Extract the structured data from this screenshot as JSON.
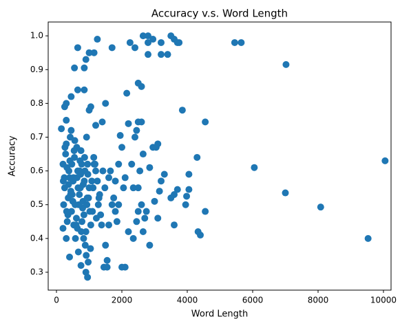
{
  "chart_data": {
    "type": "scatter",
    "title": "Accuracy v.s. Word Length",
    "x_label": "Word Length",
    "y_label": "Accuracy",
    "color": "#1f77b4",
    "xlim": [
      -253,
      10232
    ],
    "ylim": [
      0.247,
      1.041
    ],
    "xticks": [
      0,
      2000,
      4000,
      6000,
      8000,
      10000
    ],
    "yticks": [
      0.3,
      0.4,
      0.5,
      0.6,
      0.7,
      0.8,
      0.9,
      {
        "value": 1,
        "label": "1.0"
      }
    ],
    "x": [
      5450,
      5650,
      7020,
      6050,
      10050,
      7000,
      8080,
      9530,
      4550,
      4400,
      4330,
      4300,
      4550,
      3850,
      4050,
      4050,
      3980,
      3950,
      3700,
      3600,
      3500,
      3300,
      3200,
      3150,
      3600,
      3100,
      3050,
      3100,
      3000,
      2950,
      2850,
      2850,
      2700,
      2750,
      2650,
      2600,
      2500,
      2600,
      2500,
      2450,
      2400,
      2650,
      2550,
      2500,
      2600,
      2500,
      2450,
      2350,
      2200,
      2100,
      2000,
      2150,
      2200,
      2000,
      1950,
      1900,
      1800,
      1700,
      1600,
      1500,
      1450,
      1550,
      1550,
      1700,
      1500,
      1400,
      1250,
      1150,
      1000,
      900,
      850,
      550,
      650,
      2250,
      2400,
      2650,
      2800,
      2950,
      2800,
      2800,
      3200,
      3200,
      3400,
      3500,
      3600,
      3700,
      3750,
      950,
      900,
      750,
      400,
      300,
      200,
      150,
      250,
      300,
      450,
      650,
      850,
      1000,
      1050,
      1200,
      200,
      250,
      300,
      350,
      400,
      450,
      500,
      550,
      600,
      650,
      700,
      750,
      800,
      850,
      900,
      950,
      1000,
      1100,
      1200,
      1300,
      220,
      280,
      330,
      380,
      420,
      480,
      520,
      580,
      620,
      680,
      720,
      780,
      820,
      880,
      920,
      980,
      1050,
      1150,
      1250,
      1350,
      240,
      300,
      360,
      410,
      460,
      510,
      560,
      610,
      660,
      710,
      760,
      810,
      860,
      910,
      960,
      1020,
      1120,
      1220,
      1320,
      1420,
      260,
      310,
      370,
      430,
      470,
      530,
      570,
      630,
      670,
      730,
      770,
      830,
      870,
      930,
      970,
      1080,
      1180,
      1280,
      1380,
      1480,
      210,
      320,
      440,
      540,
      640,
      740,
      840,
      940,
      1040,
      1140,
      1600,
      1750,
      1850,
      2050,
      2300,
      1650,
      1900,
      2100,
      2350,
      1800
    ],
    "y": [
      0.98,
      0.98,
      0.915,
      0.61,
      0.63,
      0.535,
      0.493,
      0.4,
      0.48,
      0.41,
      0.42,
      0.64,
      0.745,
      0.78,
      0.59,
      0.545,
      0.525,
      0.5,
      0.545,
      0.53,
      0.52,
      0.59,
      0.57,
      0.54,
      0.44,
      0.68,
      0.67,
      0.46,
      0.51,
      0.67,
      0.61,
      0.38,
      0.46,
      0.48,
      0.42,
      0.85,
      0.86,
      0.745,
      0.745,
      0.72,
      0.7,
      0.65,
      0.6,
      0.55,
      0.5,
      0.48,
      0.45,
      0.4,
      0.42,
      0.315,
      0.315,
      0.83,
      0.74,
      0.67,
      0.705,
      0.62,
      0.57,
      0.5,
      0.44,
      0.38,
      0.315,
      0.315,
      0.335,
      0.965,
      0.8,
      0.745,
      0.99,
      0.95,
      0.95,
      0.93,
      0.905,
      0.905,
      0.965,
      0.98,
      0.965,
      1.0,
      1.0,
      0.99,
      0.98,
      0.945,
      0.98,
      0.945,
      0.945,
      1.0,
      0.99,
      0.98,
      0.98,
      0.285,
      0.3,
      0.32,
      0.345,
      0.4,
      0.43,
      0.725,
      0.79,
      0.8,
      0.82,
      0.84,
      0.84,
      0.78,
      0.79,
      0.735,
      0.62,
      0.55,
      0.68,
      0.47,
      0.58,
      0.72,
      0.51,
      0.64,
      0.44,
      0.6,
      0.53,
      0.66,
      0.49,
      0.57,
      0.42,
      0.62,
      0.55,
      0.48,
      0.6,
      0.52,
      0.5,
      0.65,
      0.45,
      0.6,
      0.7,
      0.53,
      0.58,
      0.4,
      0.67,
      0.5,
      0.63,
      0.45,
      0.56,
      0.38,
      0.7,
      0.52,
      0.44,
      0.62,
      0.57,
      0.47,
      0.58,
      0.75,
      0.52,
      0.63,
      0.48,
      0.57,
      0.69,
      0.46,
      0.55,
      0.6,
      0.42,
      0.51,
      0.64,
      0.35,
      0.59,
      0.48,
      0.55,
      0.46,
      0.53,
      0.6,
      0.67,
      0.48,
      0.56,
      0.53,
      0.62,
      0.44,
      0.5,
      0.58,
      0.36,
      0.55,
      0.62,
      0.4,
      0.6,
      0.5,
      0.33,
      0.57,
      0.62,
      0.5,
      0.44,
      0.55,
      0.57,
      0.61,
      0.54,
      0.66,
      0.43,
      0.59,
      0.47,
      0.52,
      0.37,
      0.64,
      0.58,
      0.52,
      0.45,
      0.55,
      0.62,
      0.6,
      0.5,
      0.58,
      0.55,
      0.48
    ]
  }
}
